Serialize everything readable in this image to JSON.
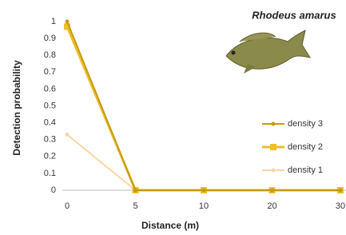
{
  "chart_data": {
    "type": "line",
    "title": "Rhodeus amarus",
    "x_label": "Distance (m)",
    "y_label": "Detection probability",
    "categories": [
      "0",
      "5",
      "10",
      "20",
      "30"
    ],
    "series": [
      {
        "name": "density 3",
        "color": "#c49a12",
        "values": [
          1,
          0,
          0,
          0,
          0
        ]
      },
      {
        "name": "density 2",
        "color": "#f0be2a",
        "values": [
          0.97,
          0,
          0,
          0,
          0
        ]
      },
      {
        "name": "density 1",
        "color": "#f9d6a6",
        "values": [
          0.33,
          0,
          0,
          0,
          0
        ]
      }
    ],
    "ylim": [
      0,
      1
    ],
    "yticks": [
      0,
      0.1,
      0.2,
      0.3,
      0.4,
      0.5,
      0.6,
      0.7,
      0.8,
      0.9,
      1
    ],
    "grid": false
  }
}
